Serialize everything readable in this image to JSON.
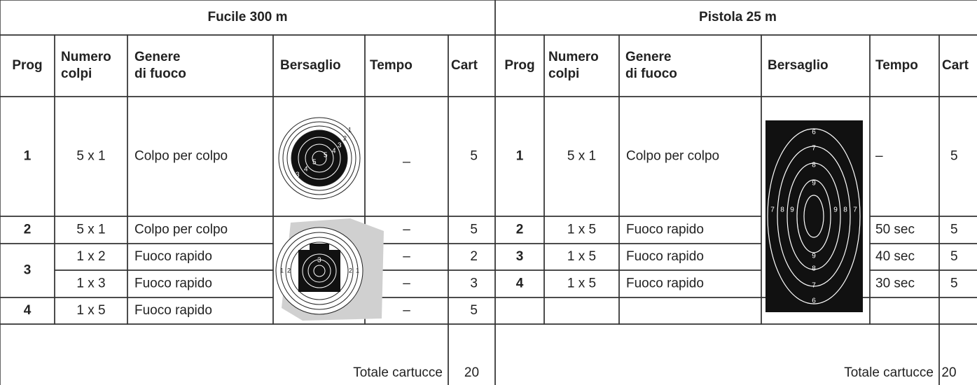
{
  "rifle": {
    "title": "Fucile 300 m",
    "headers": [
      [
        "Prog"
      ],
      [
        "Numero",
        "colpi"
      ],
      [
        "Genere",
        "di fuoco"
      ],
      [
        "Bersaglio"
      ],
      [
        "Tempo"
      ],
      [
        "Cart"
      ]
    ],
    "rows": [
      {
        "prog": "1",
        "shots": "5 x 1",
        "fire": "Colpo per colpo",
        "time": "_",
        "cart": 5
      },
      {
        "prog": "2",
        "shots": "5 x 1",
        "fire": "Colpo per colpo",
        "time": "–",
        "cart": 5
      },
      {
        "prog": "3",
        "shots": "1 x 2",
        "fire": "Fuoco rapido",
        "time": "–",
        "cart": 2
      },
      {
        "shots": "1 x 3",
        "fire": "Fuoco rapido",
        "time": "–",
        "cart": 3
      },
      {
        "prog": "4",
        "shots": "1 x 5",
        "fire": "Fuoco rapido",
        "time": "–",
        "cart": 5
      }
    ],
    "total_label": "Totale cartucce",
    "total": 20,
    "target_a_labels": [
      "1",
      "2",
      "3",
      "4",
      "5",
      "5",
      "4",
      "3"
    ],
    "target_b_labels": [
      "3",
      "2",
      "1",
      "2",
      "1"
    ]
  },
  "pistol": {
    "title": "Pistola 25 m",
    "headers": [
      [
        "Prog"
      ],
      [
        "Numero",
        "colpi"
      ],
      [
        "Genere",
        "di fuoco"
      ],
      [
        "Bersaglio"
      ],
      [
        "Tempo"
      ],
      [
        "Cart"
      ]
    ],
    "rows": [
      {
        "prog": "1",
        "shots": "5 x 1",
        "fire": "Colpo per colpo",
        "time": "–",
        "cart": 5
      },
      {
        "prog": "2",
        "shots": "1 x 5",
        "fire": "Fuoco rapido",
        "time": "50 sec",
        "cart": 5
      },
      {
        "prog": "3",
        "shots": "1 x 5",
        "fire": "Fuoco rapido",
        "time": "40 sec",
        "cart": 5
      },
      {
        "prog": "4",
        "shots": "1 x 5",
        "fire": "Fuoco rapido",
        "time": "30 sec",
        "cart": 5
      }
    ],
    "total_label": "Totale cartucce",
    "total": 20,
    "target_labels": [
      "6",
      "7",
      "8",
      "9",
      "9",
      "8",
      "7",
      "6",
      "7",
      "8",
      "9",
      "9",
      "8",
      "7"
    ]
  }
}
